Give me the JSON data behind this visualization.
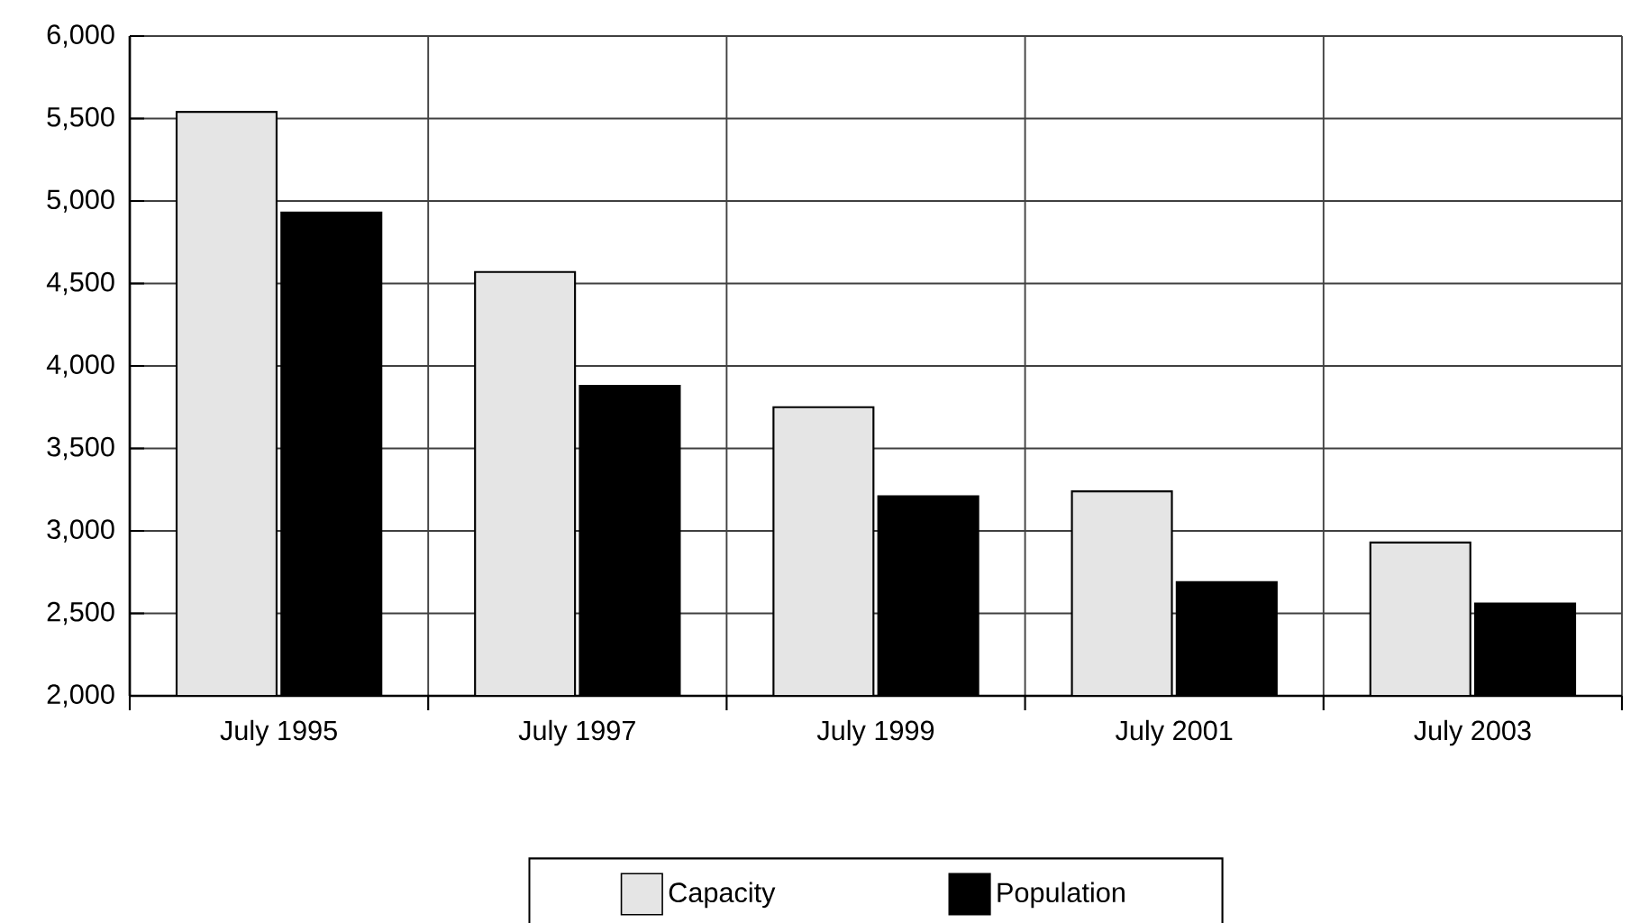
{
  "chart_data": {
    "type": "bar",
    "categories": [
      "July 1995",
      "July 1997",
      "July 1999",
      "July 2001",
      "July 2003"
    ],
    "series": [
      {
        "name": "Capacity",
        "color": "#e5e5e5",
        "values": [
          5540,
          4570,
          3750,
          3240,
          2930
        ]
      },
      {
        "name": "Population",
        "color": "#000000",
        "values": [
          4930,
          3880,
          3210,
          2690,
          2560
        ]
      }
    ],
    "ylim": [
      2000,
      6000
    ],
    "yticks": [
      {
        "value": 2000,
        "label": "2,000"
      },
      {
        "value": 2500,
        "label": "2,500"
      },
      {
        "value": 3000,
        "label": "3,000"
      },
      {
        "value": 3500,
        "label": "3,500"
      },
      {
        "value": 4000,
        "label": "4,000"
      },
      {
        "value": 4500,
        "label": "4,500"
      },
      {
        "value": 5000,
        "label": "5,000"
      },
      {
        "value": 5500,
        "label": "5,500"
      },
      {
        "value": 6000,
        "label": "6,000"
      }
    ],
    "grid": true,
    "legend": "bottom"
  }
}
